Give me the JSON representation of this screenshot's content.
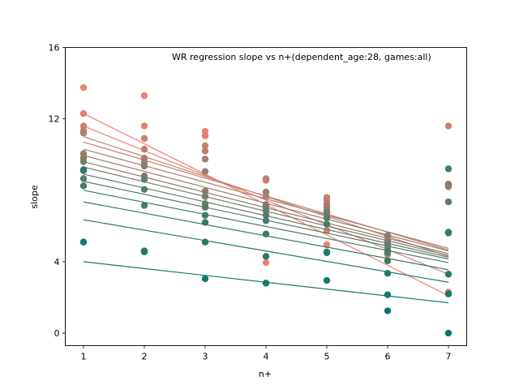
{
  "chart_data": {
    "type": "scatter",
    "title": "WR regression slope vs n+(dependent_age:28, games:all)",
    "xlabel": "n+",
    "ylabel": "slope",
    "xlim": [
      0.7,
      7.3
    ],
    "ylim": [
      -0.7,
      16
    ],
    "xticks": [
      "1",
      "2",
      "3",
      "4",
      "5",
      "6",
      "7"
    ],
    "yticks": [
      "0",
      "4",
      "12",
      "16"
    ],
    "grid": false,
    "legend": "none",
    "color_range": [
      "#f08070",
      "#00796b"
    ],
    "series": [
      {
        "values": [
          13.75,
          13.3,
          11.3,
          3.95,
          4.95,
          4.8,
          2.2
        ],
        "fit": [
          12.3,
          2.1
        ]
      },
      {
        "values": [
          12.3,
          11.6,
          11.05,
          8.55,
          5.75,
          5.15,
          2.3
        ],
        "fit": [
          11.6,
          3.3
        ]
      },
      {
        "values": [
          11.6,
          10.9,
          10.5,
          8.6,
          7.6,
          4.7,
          11.6
        ],
        "fit": [
          11.0,
          4.3
        ]
      },
      {
        "values": [
          11.35,
          10.3,
          10.2,
          8.65,
          7.45,
          4.4,
          8.25
        ],
        "fit": [
          10.7,
          4.65
        ]
      },
      {
        "values": [
          11.2,
          9.8,
          9.75,
          7.65,
          7.25,
          5.0,
          8.35
        ],
        "fit": [
          10.3,
          4.75
        ]
      },
      {
        "values": [
          10.05,
          9.55,
          9.05,
          7.9,
          7.05,
          5.2,
          8.2
        ],
        "fit": [
          9.95,
          4.6
        ]
      },
      {
        "values": [
          9.8,
          9.35,
          7.95,
          7.2,
          6.85,
          5.45,
          8.3
        ],
        "fit": [
          9.6,
          4.45
        ]
      },
      {
        "values": [
          9.6,
          8.8,
          7.65,
          7.05,
          6.75,
          5.1,
          5.6
        ],
        "fit": [
          9.3,
          4.35
        ]
      },
      {
        "values": [
          9.1,
          8.6,
          7.25,
          6.85,
          6.7,
          4.9,
          5.65
        ],
        "fit": [
          8.9,
          4.25
        ]
      },
      {
        "values": [
          8.65,
          8.05,
          7.05,
          6.6,
          6.45,
          4.5,
          7.35
        ],
        "fit": [
          8.5,
          4.15
        ]
      },
      {
        "values": [
          8.25,
          7.15,
          6.6,
          6.3,
          6.1,
          4.6,
          9.2
        ],
        "fit": [
          8.0,
          3.95
        ]
      },
      {
        "values": [
          5.1,
          4.6,
          6.2,
          5.55,
          4.55,
          4.05,
          5.65
        ],
        "fit": [
          7.35,
          3.55
        ]
      },
      {
        "values": [
          9.15,
          4.55,
          5.1,
          4.3,
          4.5,
          3.35,
          3.3
        ],
        "fit": [
          6.35,
          2.85
        ]
      },
      {
        "values": [
          5.1,
          4.6,
          3.05,
          2.8,
          2.95,
          2.15,
          2.2
        ],
        "fit": [
          4.0,
          1.7
        ]
      },
      {
        "values": [
          null,
          null,
          null,
          null,
          null,
          1.25,
          0.0
        ],
        "fit": null
      }
    ]
  }
}
